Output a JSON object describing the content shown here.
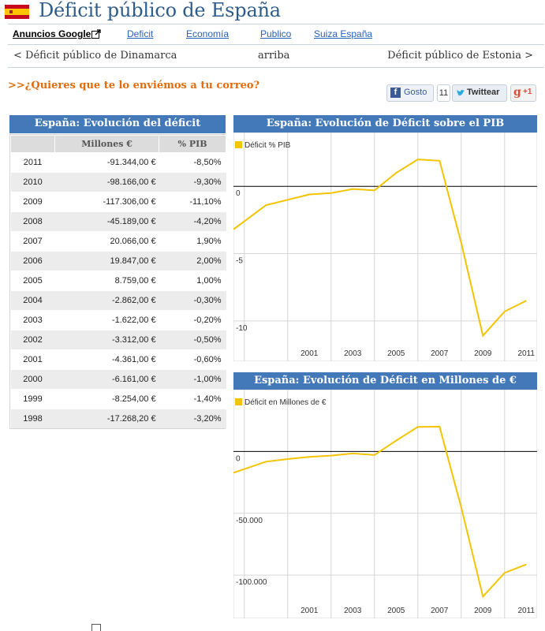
{
  "header": {
    "title": "Déficit público de España",
    "flag_colors": {
      "red": "#c60b1e",
      "yellow": "#ffc400"
    }
  },
  "nav": {
    "ads_label": "Anuncios Google",
    "links": [
      "Deficit",
      "Economía",
      "Publico",
      "Suiza España"
    ]
  },
  "pager": {
    "prev": "< Déficit público de Dinamarca",
    "up": "arriba",
    "next": "Déficit público de Estonia >"
  },
  "subscribe": ">>¿Quieres que te lo enviémos a tu correo?",
  "social": {
    "fb_label": "Gosto",
    "fb_count": "11",
    "tweet_label": "Twittear",
    "gplus_label": "+1"
  },
  "table": {
    "title": "España: Evolución del déficit",
    "columns": [
      "",
      "Millones €",
      "% PIB"
    ],
    "rows": [
      [
        "2011",
        "-91.344,00 €",
        "-8,50%"
      ],
      [
        "2010",
        "-98.166,00 €",
        "-9,30%"
      ],
      [
        "2009",
        "-117.306,00 €",
        "-11,10%"
      ],
      [
        "2008",
        "-45.189,00 €",
        "-4,20%"
      ],
      [
        "2007",
        "20.066,00 €",
        "1,90%"
      ],
      [
        "2006",
        "19.847,00 €",
        "2,00%"
      ],
      [
        "2005",
        "8.759,00 €",
        "1,00%"
      ],
      [
        "2004",
        "-2.862,00 €",
        "-0,30%"
      ],
      [
        "2003",
        "-1.622,00 €",
        "-0,20%"
      ],
      [
        "2002",
        "-3.312,00 €",
        "-0,50%"
      ],
      [
        "2001",
        "-4.361,00 €",
        "-0,60%"
      ],
      [
        "2000",
        "-6.161,00 €",
        "-1,00%"
      ],
      [
        "1999",
        "-8.254,00 €",
        "-1,40%"
      ],
      [
        "1998",
        "-17.268,20 €",
        "-3,20%"
      ]
    ]
  },
  "chart_data": [
    {
      "type": "line",
      "title": "España: Evolución de Déficit sobre el PIB",
      "series": [
        {
          "name": "Déficit % PIB",
          "color": "#f5c400",
          "x": [
            1998,
            1999,
            2000,
            2001,
            2002,
            2003,
            2004,
            2005,
            2006,
            2007,
            2008,
            2009,
            2010,
            2011
          ],
          "values": [
            -3.2,
            -1.4,
            -1.0,
            -0.6,
            -0.5,
            -0.2,
            -0.3,
            1.0,
            2.0,
            1.9,
            -4.2,
            -11.1,
            -9.3,
            -8.5
          ]
        }
      ],
      "x_ticks": [
        "2001",
        "2003",
        "2005",
        "2007",
        "2009",
        "2011"
      ],
      "y_ticks": [
        {
          "value": 0,
          "label": "0"
        },
        {
          "value": -5,
          "label": "-5"
        },
        {
          "value": -10,
          "label": "-10"
        }
      ],
      "ylim": [
        -13.0,
        4.0
      ],
      "xlim": [
        1997.5,
        2011.5
      ],
      "grid": true,
      "legend": "top-left"
    },
    {
      "type": "line",
      "title": "España: Evolución de Déficit en Millones de €",
      "series": [
        {
          "name": "Déficit en Millones de €",
          "color": "#f5c400",
          "x": [
            1998,
            1999,
            2000,
            2001,
            2002,
            2003,
            2004,
            2005,
            2006,
            2007,
            2008,
            2009,
            2010,
            2011
          ],
          "values": [
            -17268.2,
            -8254,
            -6161,
            -4361,
            -3312,
            -1622,
            -2862,
            8759,
            19847,
            20066,
            -45189,
            -117306,
            -98166,
            -91344
          ]
        }
      ],
      "x_ticks": [
        "2001",
        "2003",
        "2005",
        "2007",
        "2009",
        "2011"
      ],
      "y_ticks": [
        {
          "value": 0,
          "label": "0"
        },
        {
          "value": -50000,
          "label": "-50.000"
        },
        {
          "value": -100000,
          "label": "-100.000"
        }
      ],
      "ylim": [
        -135000,
        50000
      ],
      "xlim": [
        1997.5,
        2011.5
      ],
      "grid": true,
      "legend": "top-left"
    }
  ]
}
